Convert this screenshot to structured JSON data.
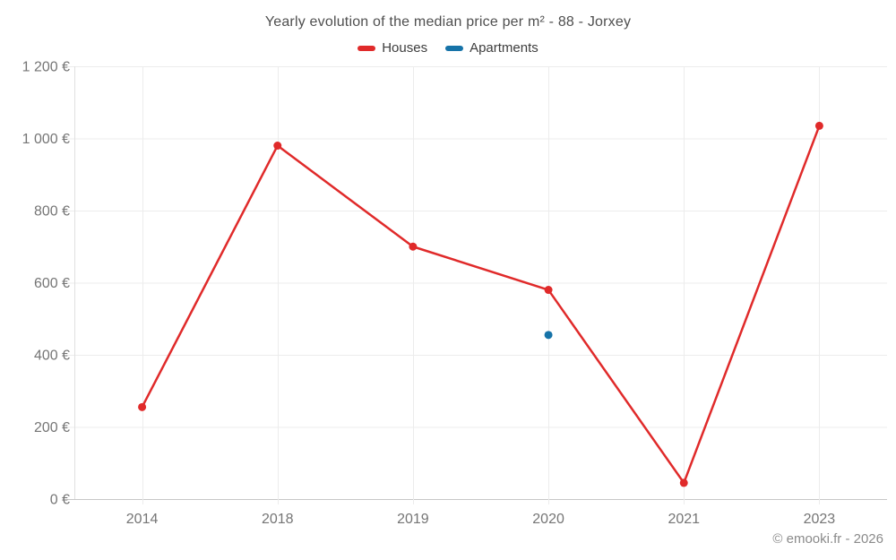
{
  "chart_data": {
    "type": "line",
    "title": "Yearly evolution of the median price per m² - 88 - Jorxey",
    "categories": [
      "2014",
      "2018",
      "2019",
      "2020",
      "2021",
      "2023"
    ],
    "series": [
      {
        "name": "Houses",
        "color": "#e02a2a",
        "values": [
          255,
          980,
          700,
          580,
          45,
          1035
        ]
      },
      {
        "name": "Apartments",
        "color": "#1673a8",
        "values": [
          null,
          null,
          null,
          455,
          null,
          null
        ]
      }
    ],
    "ylim": [
      0,
      1200
    ],
    "ytick_step": 200,
    "yticks": [
      {
        "value": 0,
        "label": "0 €"
      },
      {
        "value": 200,
        "label": "200 €"
      },
      {
        "value": 400,
        "label": "400 €"
      },
      {
        "value": 600,
        "label": "600 €"
      },
      {
        "value": 800,
        "label": "800 €"
      },
      {
        "value": 1000,
        "label": "1 000 €"
      },
      {
        "value": 1200,
        "label": "1 200 €"
      }
    ],
    "grid": true,
    "legend_position": "top",
    "currency": "€"
  },
  "footer": {
    "credit": "© emooki.fr - 2026"
  }
}
